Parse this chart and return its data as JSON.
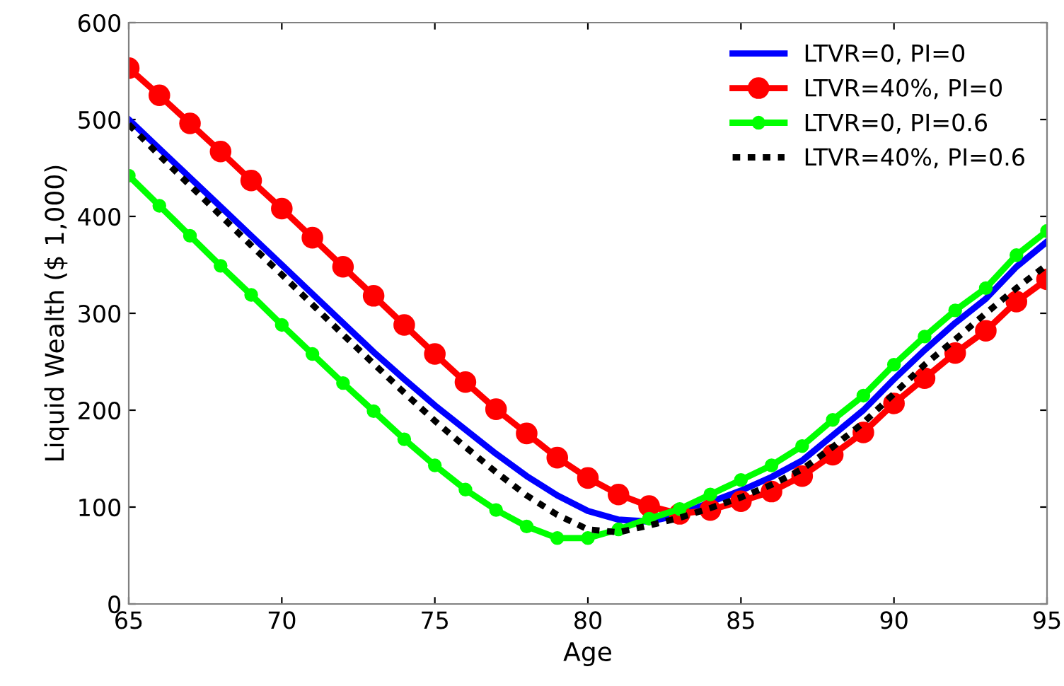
{
  "chart_data": {
    "type": "line",
    "xlabel": "Age",
    "ylabel": "Liquid Wealth ($ 1,000)",
    "x": [
      65,
      66,
      67,
      68,
      69,
      70,
      71,
      72,
      73,
      74,
      75,
      76,
      77,
      78,
      79,
      80,
      81,
      82,
      83,
      84,
      85,
      86,
      87,
      88,
      89,
      90,
      91,
      92,
      93,
      94,
      95
    ],
    "series": [
      {
        "name": "LTVR=0, PI=0",
        "color": "#0000ff",
        "marker": "none",
        "line_style": "solid",
        "values": [
          500,
          470,
          440,
          410,
          380,
          350,
          320,
          290,
          260,
          232,
          205,
          180,
          155,
          132,
          112,
          96,
          87,
          85,
          92,
          105,
          117,
          131,
          148,
          174,
          200,
          232,
          262,
          290,
          315,
          348,
          374
        ]
      },
      {
        "name": "LTVR=40%, PI=0",
        "color": "#ff0000",
        "marker": "circle",
        "line_style": "solid",
        "values": [
          553,
          525,
          496,
          467,
          437,
          408,
          378,
          348,
          318,
          288,
          258,
          229,
          201,
          176,
          151,
          130,
          113,
          101,
          93,
          97,
          106,
          116,
          132,
          154,
          177,
          207,
          233,
          259,
          282,
          312,
          335
        ]
      },
      {
        "name": "LTVR=0, PI=0.6",
        "color": "#00ff00",
        "marker": "circle",
        "line_style": "solid",
        "values": [
          442,
          411,
          380,
          349,
          319,
          288,
          258,
          228,
          199,
          170,
          143,
          118,
          97,
          80,
          68,
          68,
          77,
          88,
          98,
          113,
          128,
          143,
          163,
          190,
          215,
          247,
          276,
          303,
          326,
          360,
          385
        ]
      },
      {
        "name": "LTVR=40%, PI=0.6",
        "color": "#000000",
        "marker": "none",
        "line_style": "dotted",
        "values": [
          495,
          463,
          432,
          401,
          370,
          340,
          309,
          278,
          248,
          218,
          189,
          162,
          136,
          112,
          92,
          77,
          74,
          81,
          89,
          99,
          110,
          123,
          139,
          162,
          187,
          217,
          247,
          273,
          300,
          326,
          350
        ]
      }
    ],
    "xlim": [
      65,
      95
    ],
    "ylim": [
      0,
      600
    ],
    "xticks": [
      65,
      70,
      75,
      80,
      85,
      90,
      95
    ],
    "yticks": [
      0,
      100,
      200,
      300,
      400,
      500,
      600
    ],
    "grid": false,
    "legend": "top right"
  }
}
